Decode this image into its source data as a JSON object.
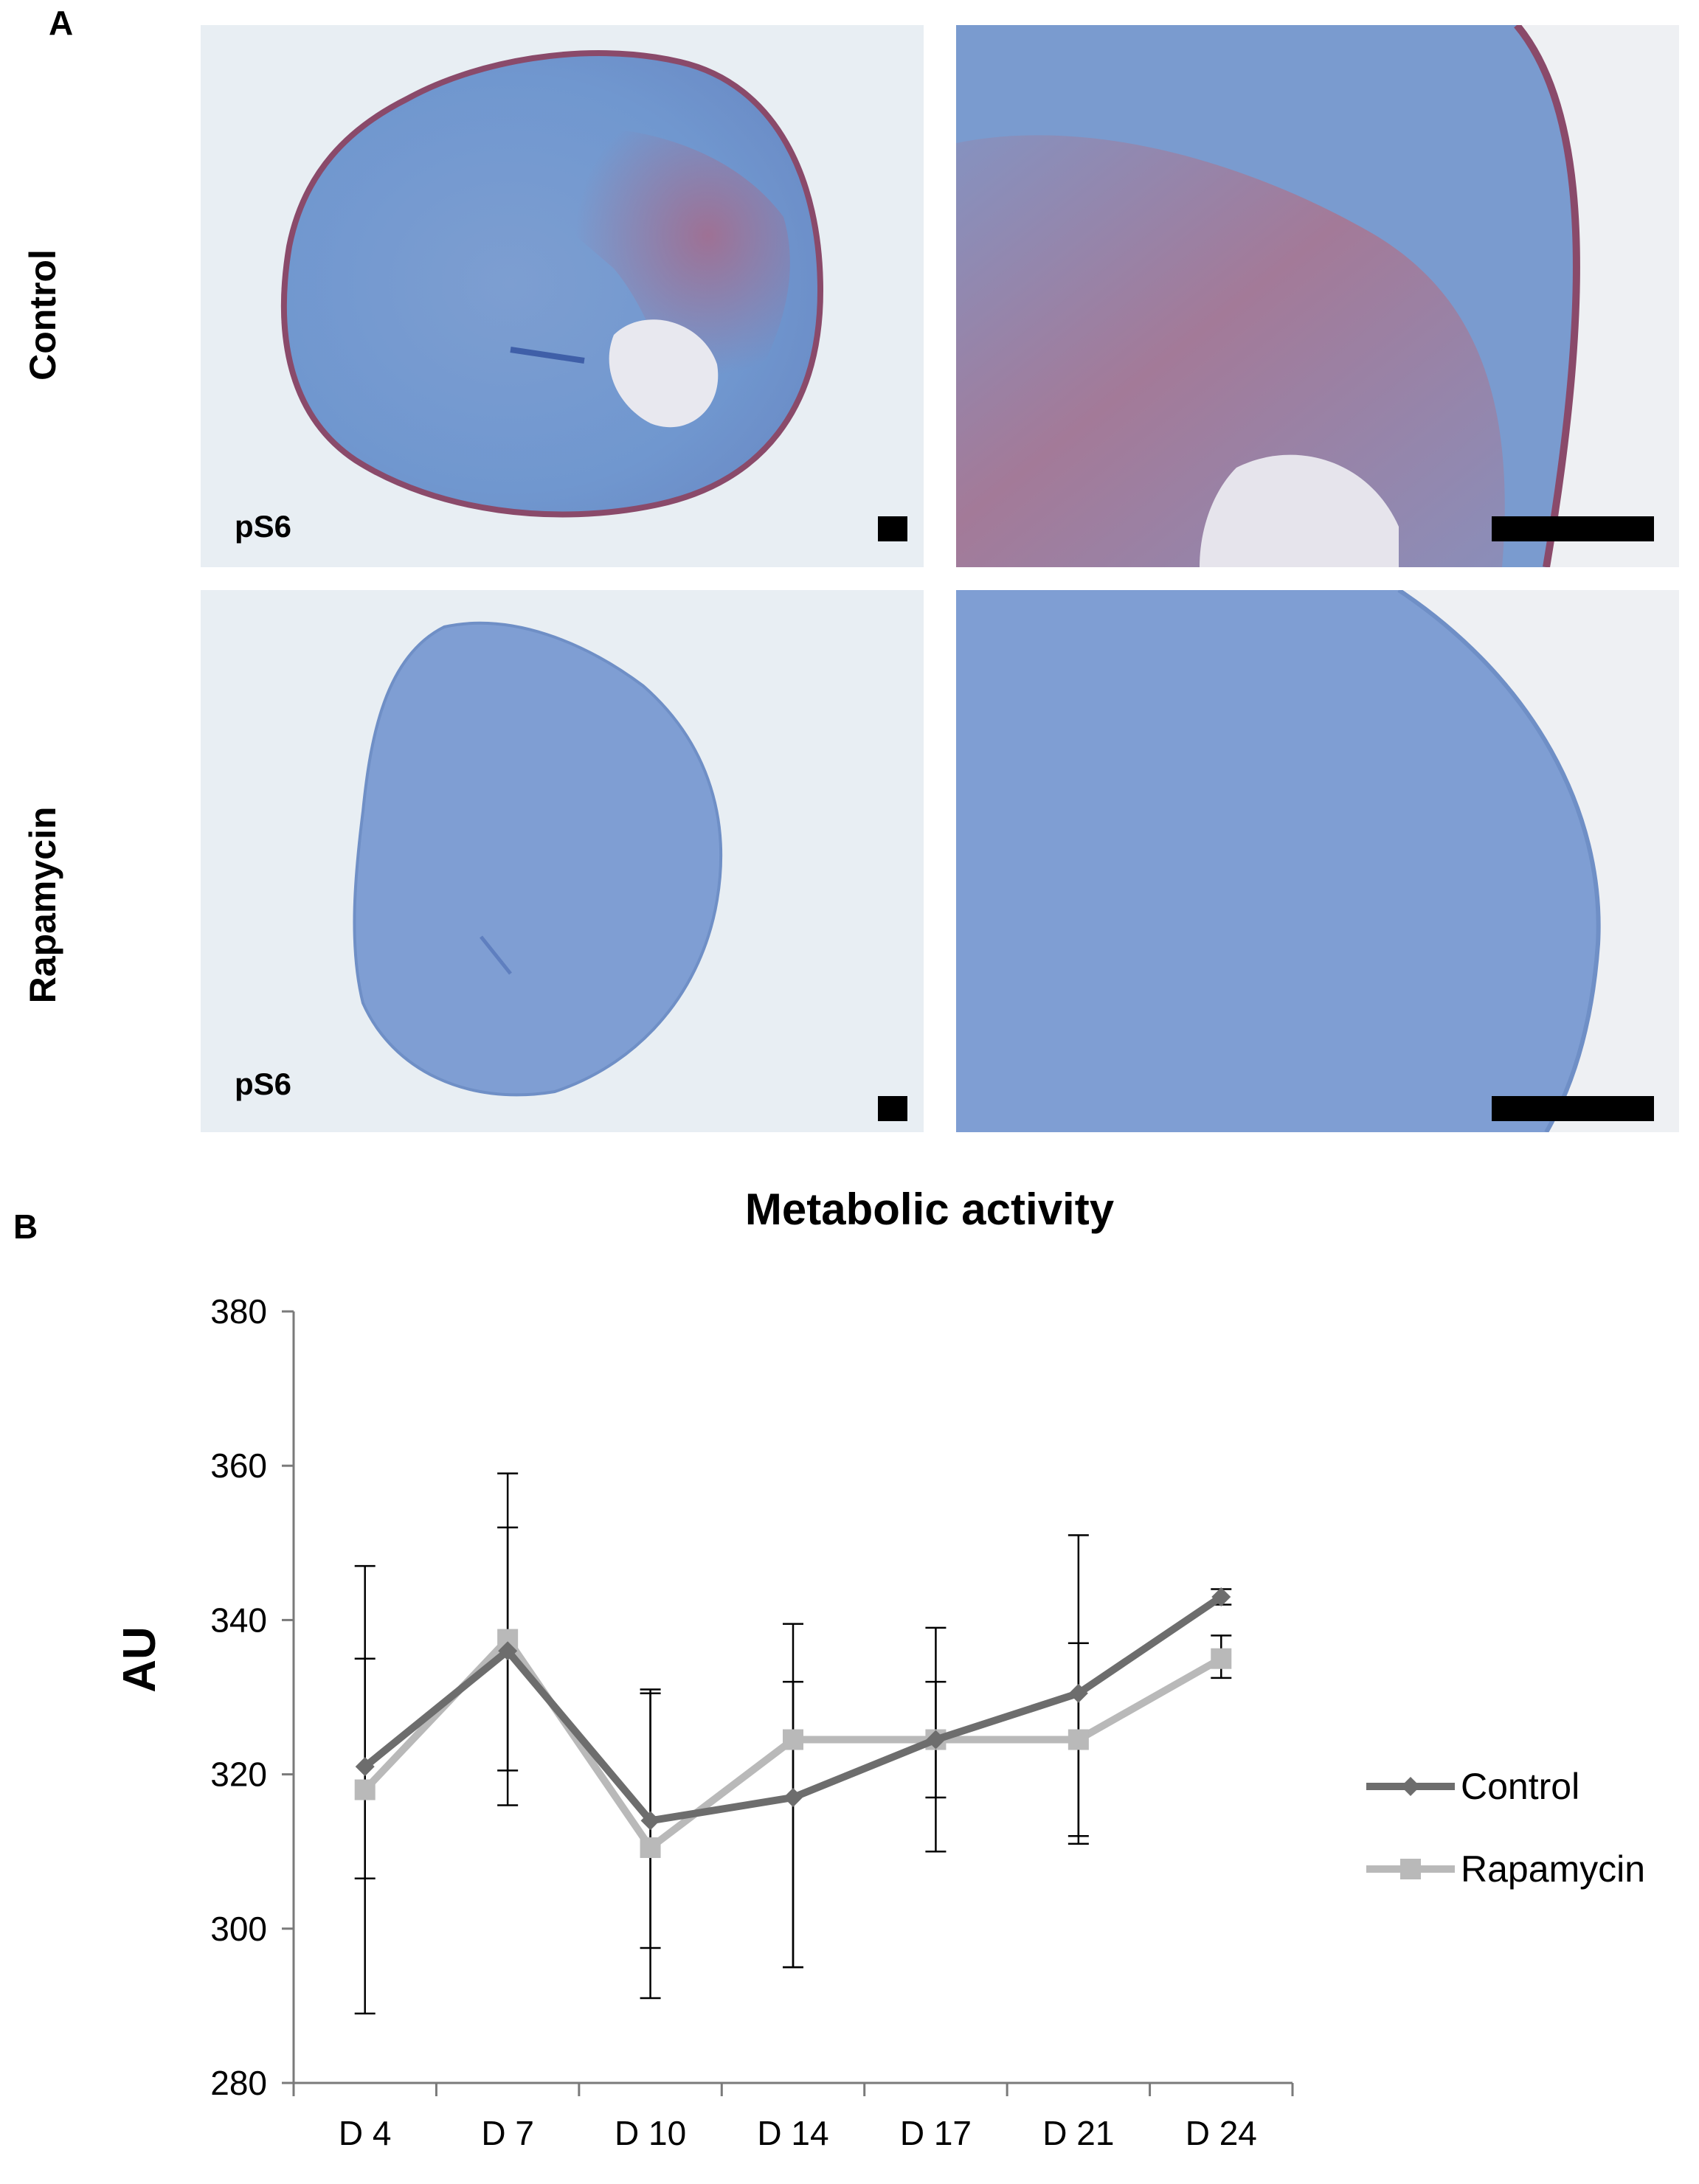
{
  "panel_a": {
    "letter": "A",
    "rows": [
      {
        "label": "Control",
        "stain": "pS6"
      },
      {
        "label": "Rapamycin",
        "stain": "pS6"
      }
    ]
  },
  "panel_b": {
    "letter": "B"
  },
  "chart_data": {
    "type": "line",
    "title": "Metabolic activity",
    "xlabel": "",
    "ylabel": "AU",
    "categories": [
      "D 4",
      "D 7",
      "D 10",
      "D 14",
      "D 17",
      "D 21",
      "D 24"
    ],
    "ylim": [
      280,
      380
    ],
    "yticks": [
      280,
      300,
      320,
      340,
      360,
      380
    ],
    "grid": false,
    "legend_position": "right",
    "series": [
      {
        "name": "Control",
        "color": "#6d6d6d",
        "marker": "diamond",
        "values": [
          321,
          336,
          314,
          317,
          324.5,
          330.5,
          343
        ],
        "error_low": [
          306.5,
          320.5,
          297.5,
          295,
          317,
          312,
          342
        ],
        "error_high": [
          335,
          352,
          330.5,
          332,
          332,
          337,
          344
        ]
      },
      {
        "name": "Rapamycin",
        "color": "#b9b9b9",
        "marker": "square",
        "values": [
          318,
          337.5,
          310.5,
          324.5,
          324.5,
          324.5,
          335
        ],
        "error_low": [
          289,
          316,
          291,
          295,
          310,
          311,
          332.5
        ],
        "error_high": [
          347,
          359,
          331,
          339.5,
          339,
          351,
          338
        ]
      }
    ]
  }
}
